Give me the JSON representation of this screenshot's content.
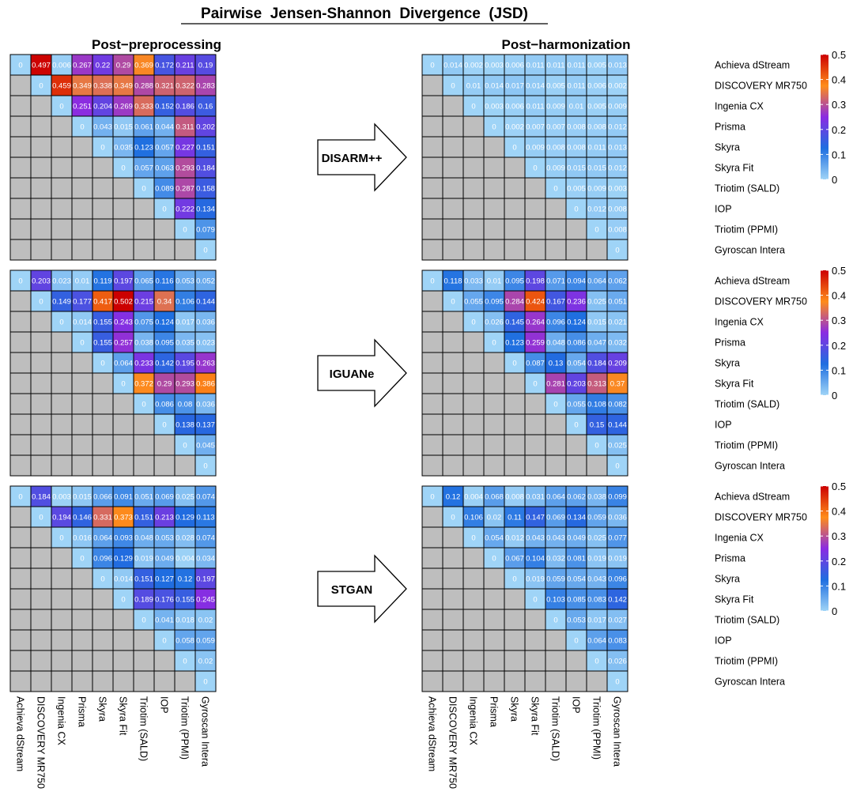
{
  "title": "Pairwise  Jensen-Shannon  Divergence  (JSD)",
  "column_headers": [
    "Post−preprocessing",
    "Post−harmonization"
  ],
  "scanners": [
    "Achieva dStream",
    "DISCOVERY MR750",
    "Ingenia CX",
    "Prisma",
    "Skyra",
    "Skyra Fit",
    "Triotim (SALD)",
    "IOP",
    "Triotim (PPMI)",
    "Gyroscan Intera"
  ],
  "methods": [
    "DISARM++",
    "IGUANe",
    "STGAN"
  ],
  "colors": {
    "missing": "#bebebe",
    "scale": [
      "#9fd4f7",
      "#1e6ee0",
      "#8a2be2",
      "#ff8c1a",
      "#cc0000"
    ]
  },
  "chart_data": [
    {
      "type": "heatmap",
      "name": "DISARM++ post-preprocessing",
      "panel": "Post−preprocessing",
      "method": "DISARM++",
      "rows": [
        "Achieva dStream",
        "DISCOVERY MR750",
        "Ingenia CX",
        "Prisma",
        "Skyra",
        "Skyra Fit",
        "Triotim (SALD)",
        "IOP",
        "Triotim (PPMI)",
        "Gyroscan Intera"
      ],
      "cols": [
        "Achieva dStream",
        "DISCOVERY MR750",
        "Ingenia CX",
        "Prisma",
        "Skyra",
        "Skyra Fit",
        "Triotim (SALD)",
        "IOP",
        "Triotim (PPMI)",
        "Gyroscan Intera"
      ],
      "values": [
        [
          "0",
          "0.497",
          "0.006",
          "0.267",
          "0.22",
          "0.29",
          "0.369",
          "0.172",
          "0.211",
          "0.19"
        ],
        [
          null,
          "0",
          "0.459",
          "0.349",
          "0.338",
          "0.349",
          "0.288",
          "0.321",
          "0.322",
          "0.283"
        ],
        [
          null,
          null,
          "0",
          "0.251",
          "0.204",
          "0.269",
          "0.333",
          "0.152",
          "0.186",
          "0.16"
        ],
        [
          null,
          null,
          null,
          "0",
          "0.043",
          "0.015",
          "0.061",
          "0.044",
          "0.311",
          "0.202"
        ],
        [
          null,
          null,
          null,
          null,
          "0",
          "0.035",
          "0.123",
          "0.057",
          "0.227",
          "0.151"
        ],
        [
          null,
          null,
          null,
          null,
          null,
          "0",
          "0.057",
          "0.063",
          "0.293",
          "0.184"
        ],
        [
          null,
          null,
          null,
          null,
          null,
          null,
          "0",
          "0.089",
          "0.287",
          "0.158"
        ],
        [
          null,
          null,
          null,
          null,
          null,
          null,
          null,
          "0",
          "0.222",
          "0.134"
        ],
        [
          null,
          null,
          null,
          null,
          null,
          null,
          null,
          null,
          "0",
          "0.079"
        ],
        [
          null,
          null,
          null,
          null,
          null,
          null,
          null,
          null,
          null,
          "0"
        ]
      ]
    },
    {
      "type": "heatmap",
      "name": "DISARM++ post-harmonization",
      "panel": "Post−harmonization",
      "method": "DISARM++",
      "rows": [
        "Achieva dStream",
        "DISCOVERY MR750",
        "Ingenia CX",
        "Prisma",
        "Skyra",
        "Skyra Fit",
        "Triotim (SALD)",
        "IOP",
        "Triotim (PPMI)",
        "Gyroscan Intera"
      ],
      "cols": [
        "Achieva dStream",
        "DISCOVERY MR750",
        "Ingenia CX",
        "Prisma",
        "Skyra",
        "Skyra Fit",
        "Triotim (SALD)",
        "IOP",
        "Triotim (PPMI)",
        "Gyroscan Intera"
      ],
      "values": [
        [
          "0",
          "0.014",
          "0.002",
          "0.003",
          "0.006",
          "0.011",
          "0.011",
          "0.011",
          "0.005",
          "0.013"
        ],
        [
          null,
          "0",
          "0.01",
          "0.014",
          "0.017",
          "0.014",
          "0.005",
          "0.011",
          "0.006",
          "0.002"
        ],
        [
          null,
          null,
          "0",
          "0.003",
          "0.006",
          "0.011",
          "0.009",
          "0.01",
          "0.005",
          "0.009"
        ],
        [
          null,
          null,
          null,
          "0",
          "0.002",
          "0.007",
          "0.007",
          "0.008",
          "0.008",
          "0.012"
        ],
        [
          null,
          null,
          null,
          null,
          "0",
          "0.009",
          "0.008",
          "0.008",
          "0.011",
          "0.013"
        ],
        [
          null,
          null,
          null,
          null,
          null,
          "0",
          "0.009",
          "0.015",
          "0.015",
          "0.012"
        ],
        [
          null,
          null,
          null,
          null,
          null,
          null,
          "0",
          "0.005",
          "0.009",
          "0.003"
        ],
        [
          null,
          null,
          null,
          null,
          null,
          null,
          null,
          "0",
          "0.012",
          "0.008"
        ],
        [
          null,
          null,
          null,
          null,
          null,
          null,
          null,
          null,
          "0",
          "0.008"
        ],
        [
          null,
          null,
          null,
          null,
          null,
          null,
          null,
          null,
          null,
          "0"
        ]
      ],
      "colorbar": {
        "min": 0,
        "max": 0.5,
        "ticks": [
          "0",
          "0.1",
          "0.2",
          "0.3",
          "0.4",
          "0.5"
        ]
      }
    },
    {
      "type": "heatmap",
      "name": "IGUANe post-preprocessing",
      "panel": "Post−preprocessing",
      "method": "IGUANe",
      "rows": [
        "Achieva dStream",
        "DISCOVERY MR750",
        "Ingenia CX",
        "Prisma",
        "Skyra",
        "Skyra Fit",
        "Triotim (SALD)",
        "IOP",
        "Triotim (PPMI)",
        "Gyroscan Intera"
      ],
      "cols": [
        "Achieva dStream",
        "DISCOVERY MR750",
        "Ingenia CX",
        "Prisma",
        "Skyra",
        "Skyra Fit",
        "Triotim (SALD)",
        "IOP",
        "Triotim (PPMI)",
        "Gyroscan Intera"
      ],
      "values": [
        [
          "0",
          "0.203",
          "0.023",
          "0.01",
          "0.119",
          "0.197",
          "0.065",
          "0.116",
          "0.053",
          "0.052"
        ],
        [
          null,
          "0",
          "0.149",
          "0.177",
          "0.417",
          "0.502",
          "0.215",
          "0.34",
          "0.106",
          "0.144"
        ],
        [
          null,
          null,
          "0",
          "0.014",
          "0.155",
          "0.243",
          "0.075",
          "0.124",
          "0.017",
          "0.036"
        ],
        [
          null,
          null,
          null,
          "0",
          "0.155",
          "0.257",
          "0.038",
          "0.095",
          "0.035",
          "0.023"
        ],
        [
          null,
          null,
          null,
          null,
          "0",
          "0.064",
          "0.233",
          "0.142",
          "0.195",
          "0.263"
        ],
        [
          null,
          null,
          null,
          null,
          null,
          "0",
          "0.372",
          "0.29",
          "0.293",
          "0.386"
        ],
        [
          null,
          null,
          null,
          null,
          null,
          null,
          "0",
          "0.086",
          "0.08",
          "0.036"
        ],
        [
          null,
          null,
          null,
          null,
          null,
          null,
          null,
          "0",
          "0.138",
          "0.137"
        ],
        [
          null,
          null,
          null,
          null,
          null,
          null,
          null,
          null,
          "0",
          "0.045"
        ],
        [
          null,
          null,
          null,
          null,
          null,
          null,
          null,
          null,
          null,
          "0"
        ]
      ]
    },
    {
      "type": "heatmap",
      "name": "IGUANe post-harmonization",
      "panel": "Post−harmonization",
      "method": "IGUANe",
      "rows": [
        "Achieva dStream",
        "DISCOVERY MR750",
        "Ingenia CX",
        "Prisma",
        "Skyra",
        "Skyra Fit",
        "Triotim (SALD)",
        "IOP",
        "Triotim (PPMI)",
        "Gyroscan Intera"
      ],
      "cols": [
        "Achieva dStream",
        "DISCOVERY MR750",
        "Ingenia CX",
        "Prisma",
        "Skyra",
        "Skyra Fit",
        "Triotim (SALD)",
        "IOP",
        "Triotim (PPMI)",
        "Gyroscan Intera"
      ],
      "values": [
        [
          "0",
          "0.118",
          "0.033",
          "0.01",
          "0.095",
          "0.198",
          "0.071",
          "0.094",
          "0.064",
          "0.062"
        ],
        [
          null,
          "0",
          "0.055",
          "0.095",
          "0.284",
          "0.424",
          "0.167",
          "0.236",
          "0.025",
          "0.051"
        ],
        [
          null,
          null,
          "0",
          "0.026",
          "0.145",
          "0.264",
          "0.096",
          "0.124",
          "0.015",
          "0.021"
        ],
        [
          null,
          null,
          null,
          "0",
          "0.123",
          "0.259",
          "0.048",
          "0.086",
          "0.047",
          "0.032"
        ],
        [
          null,
          null,
          null,
          null,
          "0",
          "0.087",
          "0.13",
          "0.054",
          "0.184",
          "0.209"
        ],
        [
          null,
          null,
          null,
          null,
          null,
          "0",
          "0.281",
          "0.203",
          "0.313",
          "0.37"
        ],
        [
          null,
          null,
          null,
          null,
          null,
          null,
          "0",
          "0.055",
          "0.108",
          "0.082"
        ],
        [
          null,
          null,
          null,
          null,
          null,
          null,
          null,
          "0",
          "0.15",
          "0.144"
        ],
        [
          null,
          null,
          null,
          null,
          null,
          null,
          null,
          null,
          "0",
          "0.025"
        ],
        [
          null,
          null,
          null,
          null,
          null,
          null,
          null,
          null,
          null,
          "0"
        ]
      ],
      "colorbar": {
        "min": 0,
        "max": 0.5,
        "ticks": [
          "0",
          "0.1",
          "0.2",
          "0.3",
          "0.4",
          "0.5"
        ]
      }
    },
    {
      "type": "heatmap",
      "name": "STGAN post-preprocessing",
      "panel": "Post−preprocessing",
      "method": "STGAN",
      "rows": [
        "Achieva dStream",
        "DISCOVERY MR750",
        "Ingenia CX",
        "Prisma",
        "Skyra",
        "Skyra Fit",
        "Triotim (SALD)",
        "IOP",
        "Triotim (PPMI)",
        "Gyroscan Intera"
      ],
      "cols": [
        "Achieva dStream",
        "DISCOVERY MR750",
        "Ingenia CX",
        "Prisma",
        "Skyra",
        "Skyra Fit",
        "Triotim (SALD)",
        "IOP",
        "Triotim (PPMI)",
        "Gyroscan Intera"
      ],
      "values": [
        [
          "0",
          "0.184",
          "0.003",
          "0.015",
          "0.066",
          "0.091",
          "0.051",
          "0.069",
          "0.025",
          "0.074"
        ],
        [
          null,
          "0",
          "0.194",
          "0.146",
          "0.331",
          "0.373",
          "0.151",
          "0.213",
          "0.129",
          "0.113"
        ],
        [
          null,
          null,
          "0",
          "0.016",
          "0.064",
          "0.093",
          "0.048",
          "0.053",
          "0.028",
          "0.074"
        ],
        [
          null,
          null,
          null,
          "0",
          "0.096",
          "0.129",
          "0.019",
          "0.049",
          "0.004",
          "0.034"
        ],
        [
          null,
          null,
          null,
          null,
          "0",
          "0.014",
          "0.151",
          "0.127",
          "0.12",
          "0.197"
        ],
        [
          null,
          null,
          null,
          null,
          null,
          "0",
          "0.189",
          "0.176",
          "0.155",
          "0.245"
        ],
        [
          null,
          null,
          null,
          null,
          null,
          null,
          "0",
          "0.041",
          "0.018",
          "0.02"
        ],
        [
          null,
          null,
          null,
          null,
          null,
          null,
          null,
          "0",
          "0.058",
          "0.059"
        ],
        [
          null,
          null,
          null,
          null,
          null,
          null,
          null,
          null,
          "0",
          "0.02"
        ],
        [
          null,
          null,
          null,
          null,
          null,
          null,
          null,
          null,
          null,
          "0"
        ]
      ]
    },
    {
      "type": "heatmap",
      "name": "STGAN post-harmonization",
      "panel": "Post−harmonization",
      "method": "STGAN",
      "rows": [
        "Achieva dStream",
        "DISCOVERY MR750",
        "Ingenia CX",
        "Prisma",
        "Skyra",
        "Skyra Fit",
        "Triotim (SALD)",
        "IOP",
        "Triotim (PPMI)",
        "Gyroscan Intera"
      ],
      "cols": [
        "Achieva dStream",
        "DISCOVERY MR750",
        "Ingenia CX",
        "Prisma",
        "Skyra",
        "Skyra Fit",
        "Triotim (SALD)",
        "IOP",
        "Triotim (PPMI)",
        "Gyroscan Intera"
      ],
      "values": [
        [
          "0",
          "0.12",
          "0.004",
          "0.068",
          "0.008",
          "0.031",
          "0.064",
          "0.062",
          "0.038",
          "0.099"
        ],
        [
          null,
          "0",
          "0.106",
          "0.02",
          "0.11",
          "0.147",
          "0.069",
          "0.134",
          "0.059",
          "0.036"
        ],
        [
          null,
          null,
          "0",
          "0.054",
          "0.012",
          "0.043",
          "0.043",
          "0.049",
          "0.025",
          "0.077"
        ],
        [
          null,
          null,
          null,
          "0",
          "0.067",
          "0.104",
          "0.032",
          "0.081",
          "0.019",
          "0.019"
        ],
        [
          null,
          null,
          null,
          null,
          "0",
          "0.019",
          "0.059",
          "0.054",
          "0.043",
          "0.096"
        ],
        [
          null,
          null,
          null,
          null,
          null,
          "0",
          "0.103",
          "0.085",
          "0.083",
          "0.142"
        ],
        [
          null,
          null,
          null,
          null,
          null,
          null,
          "0",
          "0.053",
          "0.017",
          "0.027"
        ],
        [
          null,
          null,
          null,
          null,
          null,
          null,
          null,
          "0",
          "0.064",
          "0.083"
        ],
        [
          null,
          null,
          null,
          null,
          null,
          null,
          null,
          null,
          "0",
          "0.026"
        ],
        [
          null,
          null,
          null,
          null,
          null,
          null,
          null,
          null,
          null,
          "0"
        ]
      ],
      "colorbar": {
        "min": 0,
        "max": 0.5,
        "ticks": [
          "0",
          "0.1",
          "0.2",
          "0.3",
          "0.4",
          "0.5"
        ]
      }
    }
  ]
}
